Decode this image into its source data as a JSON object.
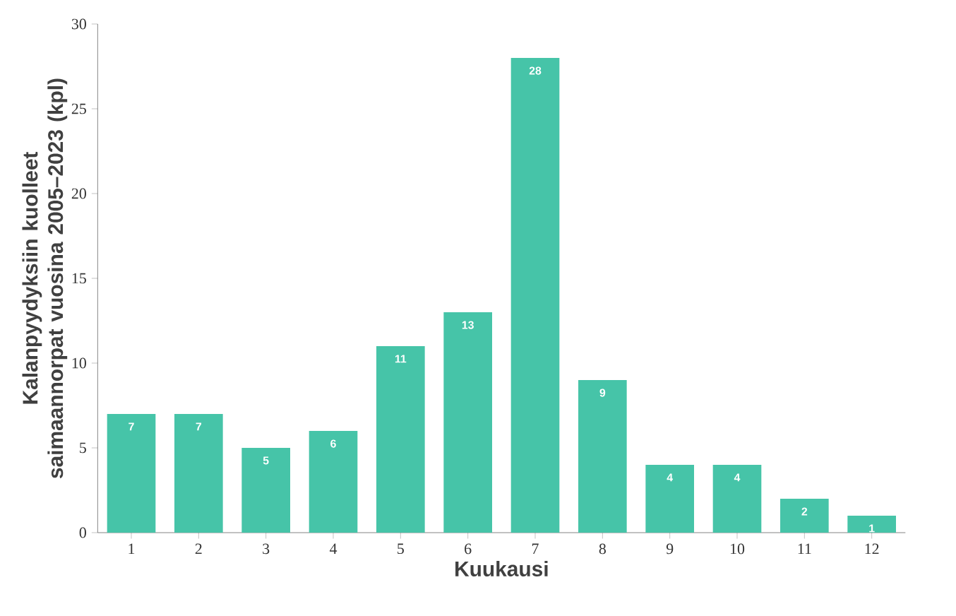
{
  "chart_data": {
    "type": "bar",
    "xlabel": "Kuukausi",
    "ylabel": "Kalanpyydyksiin kuolleet saimaannorpat vuosina 2005–2023 (kpl)",
    "categories": [
      "1",
      "2",
      "3",
      "4",
      "5",
      "6",
      "7",
      "8",
      "9",
      "10",
      "11",
      "12"
    ],
    "values": [
      7,
      7,
      5,
      6,
      11,
      13,
      28,
      9,
      4,
      4,
      2,
      1
    ],
    "color": "#46c4a8",
    "ylim": [
      0,
      30
    ],
    "yticks": [
      0,
      5,
      10,
      15,
      20,
      25,
      30
    ],
    "data_labels": true
  }
}
